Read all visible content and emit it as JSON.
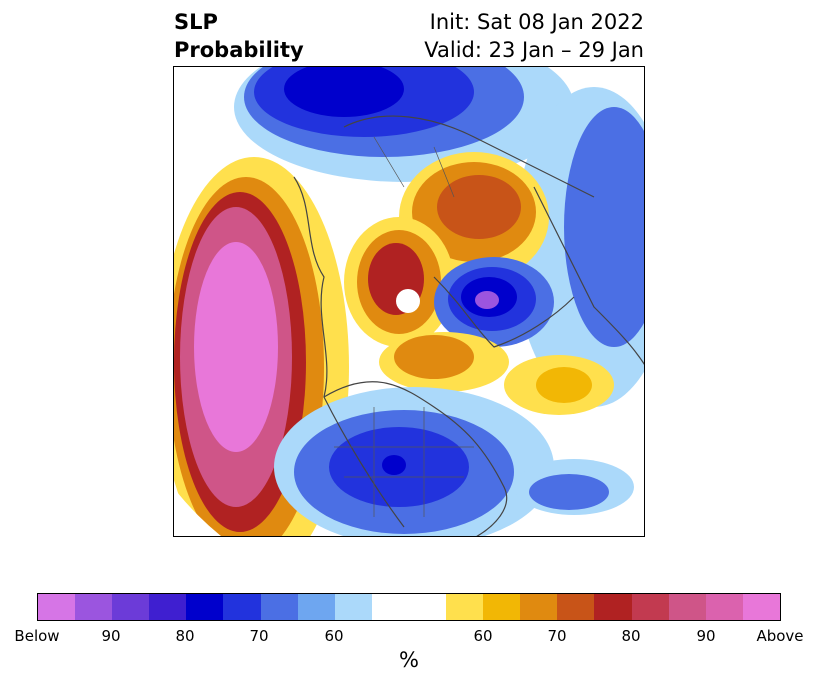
{
  "header": {
    "title_line1": "SLP",
    "title_line2": "Probability",
    "init_text": "Init: Sat 08 Jan 2022",
    "valid_text": "Valid: 23 Jan – 29 Jan"
  },
  "colorbar": {
    "label": "%",
    "colors": [
      "#d675e6",
      "#9b55df",
      "#6c3bd8",
      "#3f1fd0",
      "#0000cc",
      "#2233dd",
      "#4b6fe4",
      "#6ea6f0",
      "#abd9fa",
      "#ffffff",
      "#ffffff",
      "#ffe04d",
      "#f2b705",
      "#e08a10",
      "#c85418",
      "#b02222",
      "#c23a50",
      "#cf5588",
      "#db62ae",
      "#e877d9"
    ],
    "tick_labels": [
      "Below",
      "90",
      "80",
      "70",
      "60",
      "60",
      "70",
      "80",
      "90",
      "Above"
    ]
  }
}
